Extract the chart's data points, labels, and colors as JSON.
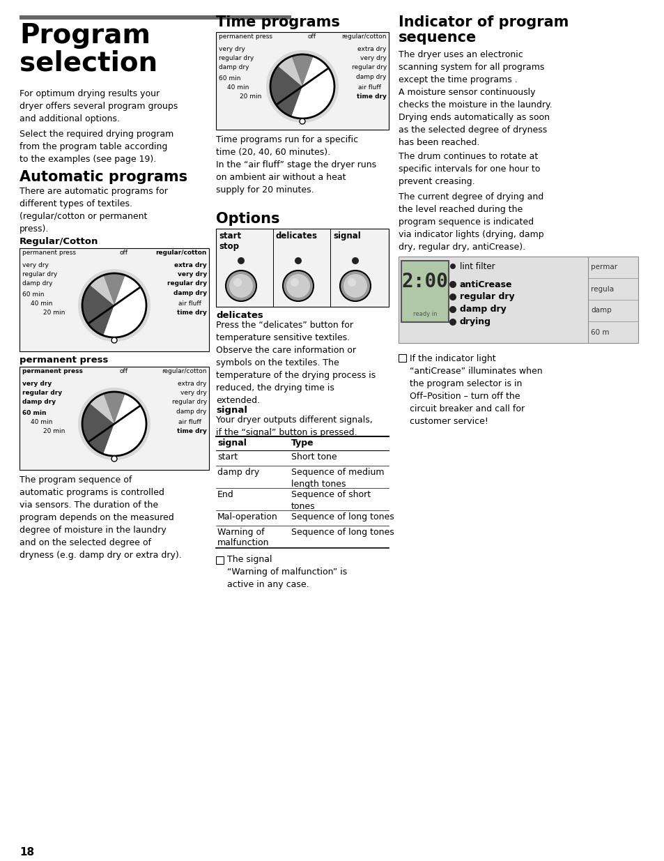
{
  "page_number": "18",
  "bg_color": "#ffffff",
  "section1_title": "Program\nselection",
  "section1_body1": "For optimum drying results your\ndryer offers several program groups\nand additional options.",
  "section1_body2": "Select the required drying program\nfrom the program table according\nto the examples (see page 19).",
  "section2_title": "Automatic programs",
  "section2_body": "There are automatic programs for\ndifferent types of textiles.\n(regular/cotton or permanent\npress).",
  "subsection1": "Regular/Cotton",
  "subsection2": "permanent press",
  "auto_body": "The program sequence of\nautomatic programs is controlled\nvia sensors. The duration of the\nprogram depends on the measured\ndegree of moisture in the laundry\nand on the selected degree of\ndryness (e.g. damp dry or extra dry).",
  "col2_title1": "Time programs",
  "time_body": "Time programs run for a specific\ntime (20, 40, 60 minutes).\nIn the “air fluff” stage the dryer runs\non ambient air without a heat\nsupply for 20 minutes.",
  "col2_title2": "Options",
  "options_labels": [
    "start\nstop",
    "delicates",
    "signal"
  ],
  "delicates_title": "delicates",
  "delicates_body": "Press the “delicates” button for\ntemperature sensitive textiles.\nObserve the care information or\nsymbols on the textiles. The\ntemperature of the drying process is\nreduced, the drying time is\nextended.",
  "signal_title": "signal",
  "signal_body": "Your dryer outputs different signals,\nif the “signal” button is pressed.",
  "table_headers": [
    "signal",
    "Type"
  ],
  "table_rows": [
    [
      "start",
      "Short tone"
    ],
    [
      "damp dry",
      "Sequence of medium\nlength tones"
    ],
    [
      "End",
      "Sequence of short\ntones"
    ],
    [
      "Mal-operation",
      "Sequence of long tones"
    ],
    [
      "Warning of\nmalfunction",
      "Sequence of long tones"
    ]
  ],
  "note_signal": "The signal\n“Warning of malfunction” is\nactive in any case.",
  "col3_title": "Indicator of program\nsequence",
  "col3_body1": "The dryer uses an electronic\nscanning system for all programs\nexcept the time programs .\nA moisture sensor continuously\nchecks the moisture in the laundry.\nDrying ends automatically as soon\nas the selected degree of dryness\nhas been reached.",
  "col3_body2": "The drum continues to rotate at\nspecific intervals for one hour to\nprevent creasing.",
  "col3_body3": "The current degree of drying and\nthe level reached during the\nprogram sequence is indicated\nvia indicator lights (drying, damp\ndry, regular dry, antiCrease).",
  "indicator_right": [
    "permar",
    "regula",
    "damp",
    "60 m"
  ],
  "note_indicator": "If the indicator light\n“antiCrease” illuminates when\nthe program selector is in\nOff–Position – turn off the\ncircuit breaker and call for\ncustomer service!"
}
